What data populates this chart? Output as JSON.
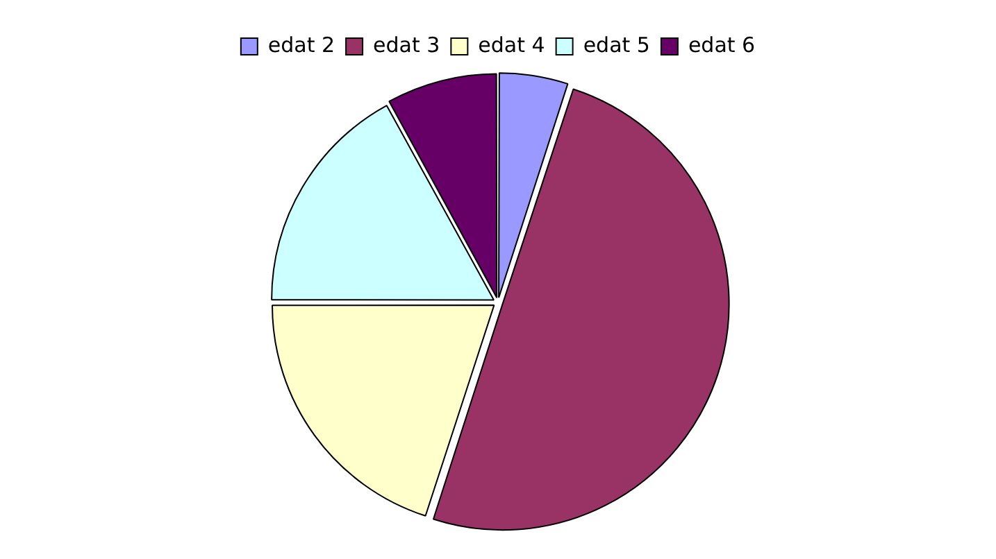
{
  "chart_data": {
    "type": "pie",
    "categories": [
      "edat 2",
      "edat 3",
      "edat 4",
      "edat 5",
      "edat 6"
    ],
    "values": [
      5,
      50,
      20,
      17,
      8
    ],
    "colors": [
      "#9999ff",
      "#993366",
      "#ffffcc",
      "#ccffff",
      "#660066"
    ],
    "legend": "top"
  }
}
